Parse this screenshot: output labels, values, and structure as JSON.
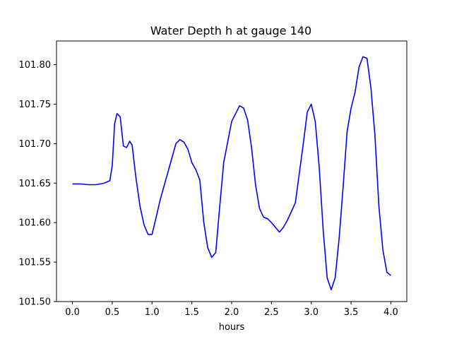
{
  "chart_data": {
    "type": "line",
    "title": "Water Depth h at gauge 140",
    "xlabel": "hours",
    "ylabel": "",
    "xlim": [
      -0.2,
      4.2
    ],
    "ylim": [
      101.5,
      101.83
    ],
    "xticks": [
      0.0,
      0.5,
      1.0,
      1.5,
      2.0,
      2.5,
      3.0,
      3.5,
      4.0
    ],
    "xtick_labels": [
      "0.0",
      "0.5",
      "1.0",
      "1.5",
      "2.0",
      "2.5",
      "3.0",
      "3.5",
      "4.0"
    ],
    "yticks": [
      101.5,
      101.55,
      101.6,
      101.65,
      101.7,
      101.75,
      101.8
    ],
    "ytick_labels": [
      "101.50",
      "101.55",
      "101.60",
      "101.65",
      "101.70",
      "101.75",
      "101.80"
    ],
    "grid": false,
    "line_color": "#0000ff",
    "series": [
      {
        "x": [
          0.0,
          0.1,
          0.2,
          0.3,
          0.4,
          0.47,
          0.5,
          0.53,
          0.56,
          0.6,
          0.64,
          0.68,
          0.72,
          0.75,
          0.8,
          0.85,
          0.9,
          0.95,
          1.0,
          1.05,
          1.1,
          1.2,
          1.3,
          1.35,
          1.4,
          1.45,
          1.5,
          1.55,
          1.6,
          1.65,
          1.7,
          1.75,
          1.8,
          1.85,
          1.9,
          2.0,
          2.1,
          2.15,
          2.2,
          2.25,
          2.3,
          2.35,
          2.4,
          2.45,
          2.5,
          2.6,
          2.65,
          2.7,
          2.8,
          2.9,
          2.95,
          3.0,
          3.05,
          3.1,
          3.15,
          3.2,
          3.25,
          3.3,
          3.35,
          3.4,
          3.45,
          3.5,
          3.55,
          3.6,
          3.65,
          3.7,
          3.75,
          3.8,
          3.85,
          3.9,
          3.95,
          4.0
        ],
        "y": [
          101.649,
          101.649,
          101.648,
          101.648,
          101.65,
          101.653,
          101.672,
          101.725,
          101.738,
          101.734,
          101.697,
          101.695,
          101.703,
          101.698,
          101.655,
          101.62,
          101.597,
          101.585,
          101.585,
          101.606,
          101.628,
          101.664,
          101.7,
          101.705,
          101.702,
          101.693,
          101.676,
          101.667,
          101.654,
          101.6,
          101.568,
          101.556,
          101.562,
          101.62,
          101.676,
          101.728,
          101.748,
          101.745,
          101.73,
          101.695,
          101.648,
          101.618,
          101.607,
          101.605,
          101.6,
          101.588,
          101.594,
          101.603,
          101.625,
          101.7,
          101.74,
          101.75,
          101.728,
          101.67,
          101.59,
          101.53,
          101.515,
          101.53,
          101.58,
          101.645,
          101.715,
          101.745,
          101.765,
          101.797,
          101.81,
          101.808,
          101.77,
          101.71,
          101.62,
          101.565,
          101.537,
          101.533
        ]
      }
    ]
  }
}
